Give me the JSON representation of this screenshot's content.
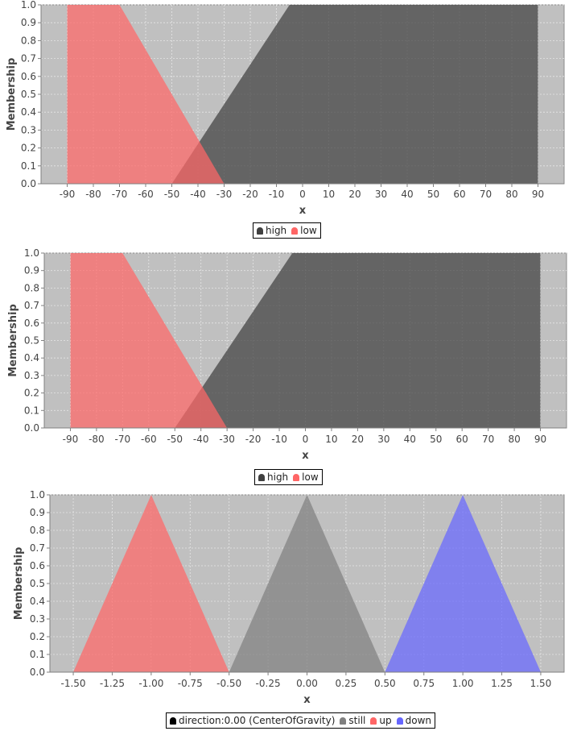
{
  "chart_data": [
    {
      "type": "area",
      "xlabel": "x",
      "ylabel": "Membership",
      "xlim": [
        -100,
        100
      ],
      "ylim": [
        0,
        1.0
      ],
      "x_ticks": [
        "-90",
        "-80",
        "-70",
        "-60",
        "-50",
        "-40",
        "-30",
        "-20",
        "-10",
        "0",
        "10",
        "20",
        "30",
        "40",
        "50",
        "60",
        "70",
        "80",
        "90"
      ],
      "y_ticks": [
        "0.0",
        "0.1",
        "0.2",
        "0.3",
        "0.4",
        "0.5",
        "0.6",
        "0.7",
        "0.8",
        "0.9",
        "1.0"
      ],
      "grid": true,
      "legend_placement": "bottom-center",
      "series": [
        {
          "name": "high",
          "color": "#404040",
          "x": [
            -50,
            -5,
            90,
            90
          ],
          "y": [
            0,
            1,
            1,
            0
          ]
        },
        {
          "name": "low",
          "color": "#ff6666",
          "x": [
            -90,
            -90,
            -70,
            -30
          ],
          "y": [
            0,
            1,
            1,
            0
          ]
        }
      ]
    },
    {
      "type": "area",
      "xlabel": "x",
      "ylabel": "Membership",
      "xlim": [
        -100,
        100
      ],
      "ylim": [
        0,
        1.0
      ],
      "x_ticks": [
        "-90",
        "-80",
        "-70",
        "-60",
        "-50",
        "-40",
        "-30",
        "-20",
        "-10",
        "0",
        "10",
        "20",
        "30",
        "40",
        "50",
        "60",
        "70",
        "80",
        "90"
      ],
      "y_ticks": [
        "0.0",
        "0.1",
        "0.2",
        "0.3",
        "0.4",
        "0.5",
        "0.6",
        "0.7",
        "0.8",
        "0.9",
        "1.0"
      ],
      "grid": true,
      "legend_placement": "bottom-center",
      "series": [
        {
          "name": "high",
          "color": "#404040",
          "x": [
            -50,
            -5,
            90,
            90
          ],
          "y": [
            0,
            1,
            1,
            0
          ]
        },
        {
          "name": "low",
          "color": "#ff6666",
          "x": [
            -90,
            -90,
            -70,
            -30
          ],
          "y": [
            0,
            1,
            1,
            0
          ]
        }
      ]
    },
    {
      "type": "area",
      "xlabel": "x",
      "ylabel": "Membership",
      "xlim": [
        -1.65,
        1.65
      ],
      "ylim": [
        0,
        1.0
      ],
      "x_ticks": [
        "-1.50",
        "-1.25",
        "-1.00",
        "-0.75",
        "-0.50",
        "-0.25",
        "0.00",
        "0.25",
        "0.50",
        "0.75",
        "1.00",
        "1.25",
        "1.50"
      ],
      "y_ticks": [
        "0.0",
        "0.1",
        "0.2",
        "0.3",
        "0.4",
        "0.5",
        "0.6",
        "0.7",
        "0.8",
        "0.9",
        "1.0"
      ],
      "grid": true,
      "legend_placement": "bottom-center",
      "series": [
        {
          "name": "direction:0.00 (CenterOfGravity)",
          "color": "#000000",
          "x": [],
          "y": []
        },
        {
          "name": "still",
          "color": "#808080",
          "x": [
            -0.5,
            0,
            0.5
          ],
          "y": [
            0,
            1,
            0
          ]
        },
        {
          "name": "up",
          "color": "#ff6666",
          "x": [
            -1.5,
            -1,
            -0.5
          ],
          "y": [
            0,
            1,
            0
          ]
        },
        {
          "name": "down",
          "color": "#6666ff",
          "x": [
            0.5,
            1,
            1.5
          ],
          "y": [
            0,
            1,
            0
          ]
        }
      ]
    }
  ]
}
